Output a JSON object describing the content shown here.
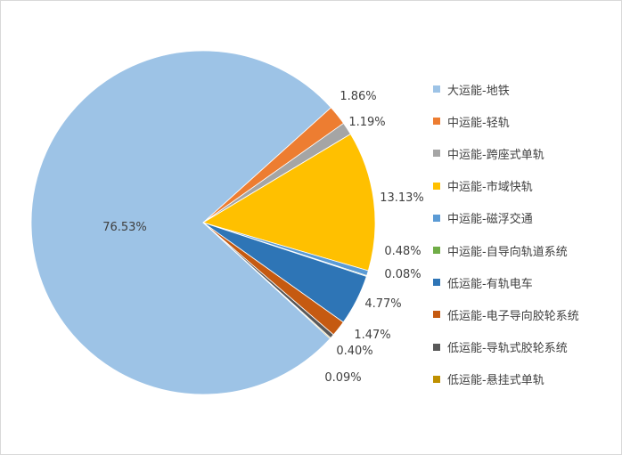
{
  "chart_data": {
    "type": "pie",
    "title": "",
    "slices": [
      {
        "label": "大运能-地铁",
        "value": 76.53,
        "display": "76.53%",
        "color": "#9dc3e6"
      },
      {
        "label": "中运能-轻轨",
        "value": 1.86,
        "display": "1.86%",
        "color": "#ed7d31"
      },
      {
        "label": "中运能-跨座式单轨",
        "value": 1.19,
        "display": "1.19%",
        "color": "#a5a5a5"
      },
      {
        "label": "中运能-市域快轨",
        "value": 13.13,
        "display": "13.13%",
        "color": "#ffc000"
      },
      {
        "label": "中运能-磁浮交通",
        "value": 0.48,
        "display": "0.48%",
        "color": "#5b9bd5"
      },
      {
        "label": "中运能-自导向轨道系统",
        "value": 0.08,
        "display": "0.08%",
        "color": "#70ad47"
      },
      {
        "label": "低运能-有轨电车",
        "value": 4.77,
        "display": "4.77%",
        "color": "#2e75b6"
      },
      {
        "label": "低运能-电子导向胶轮系统",
        "value": 1.47,
        "display": "1.47%",
        "color": "#c55a11"
      },
      {
        "label": "低运能-导轨式胶轮系统",
        "value": 0.4,
        "display": "0.40%",
        "color": "#595959"
      },
      {
        "label": "低运能-悬挂式单轨",
        "value": 0.09,
        "display": "0.09%",
        "color": "#bf9000"
      }
    ],
    "legend_position": "right"
  }
}
